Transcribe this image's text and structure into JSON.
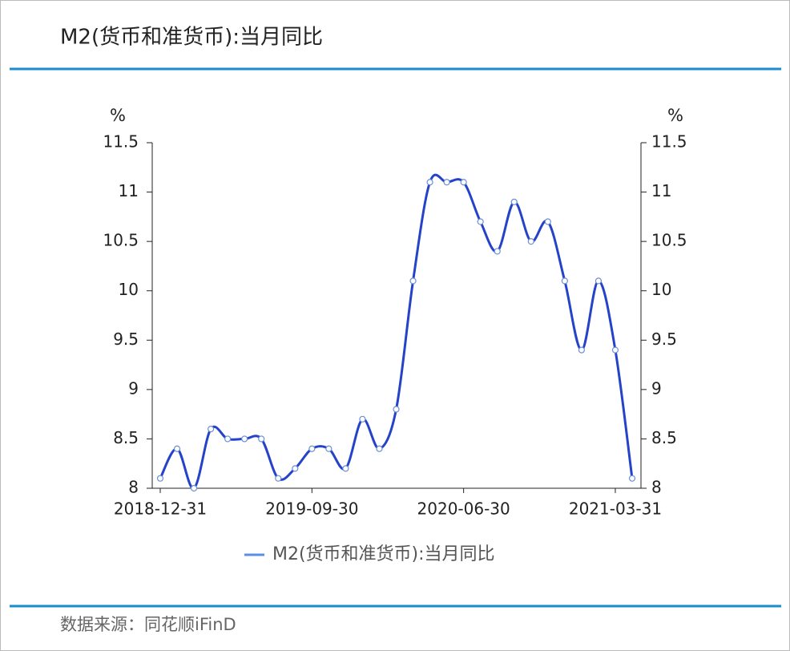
{
  "chart_data": {
    "type": "line",
    "title": "M2(货币和准货币):当月同比",
    "y_label": "%",
    "y2_label": "%",
    "source": "数据来源：同花顺iFinD",
    "categories": [
      "2018-12-31",
      null,
      null,
      null,
      null,
      null,
      null,
      null,
      null,
      "2019-09-30",
      null,
      null,
      null,
      null,
      null,
      null,
      null,
      null,
      "2020-06-30",
      null,
      null,
      null,
      null,
      null,
      null,
      null,
      null,
      "2021-03-31",
      null
    ],
    "series": [
      {
        "name": "M2(货币和准货币):当月同比",
        "color": "#2443c9",
        "values": [
          8.1,
          8.4,
          8.0,
          8.6,
          8.5,
          8.5,
          8.5,
          8.1,
          8.2,
          8.4,
          8.4,
          8.2,
          8.7,
          8.4,
          8.8,
          10.1,
          11.1,
          11.1,
          11.1,
          10.7,
          10.4,
          10.9,
          10.5,
          10.7,
          10.1,
          9.4,
          10.1,
          9.4,
          8.1
        ]
      }
    ],
    "ylim": [
      8,
      11.5
    ],
    "yticks": [
      8,
      8.5,
      9,
      9.5,
      10,
      10.5,
      11,
      11.5
    ],
    "y2lim": [
      8,
      11.5
    ],
    "y2ticks": [
      8,
      8.5,
      9,
      9.5,
      10,
      10.5,
      11,
      11.5
    ],
    "legend": "bottom"
  }
}
